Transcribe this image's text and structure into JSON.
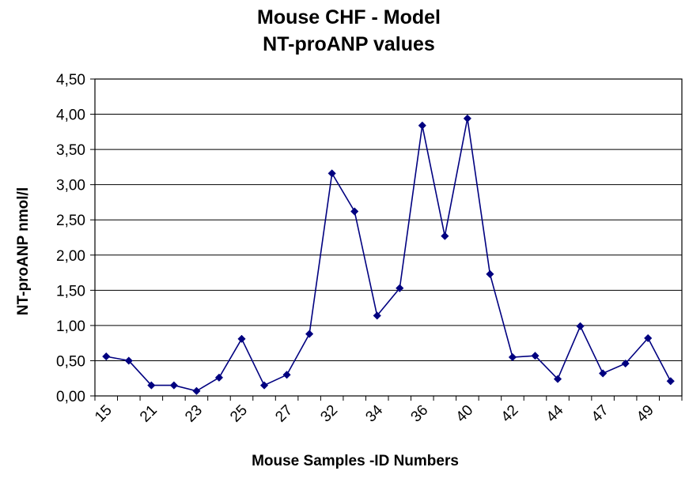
{
  "chart_data": {
    "type": "line",
    "title": "Mouse CHF - Model",
    "subtitle": "NT-proANP values",
    "xlabel": "Mouse  Samples -ID Numbers",
    "ylabel": "NT-proANP  nmol/l",
    "ylim": [
      0,
      4.5
    ],
    "y_ticks": [
      "0,00",
      "0,50",
      "1,00",
      "1,50",
      "2,00",
      "2,50",
      "3,00",
      "3,50",
      "4,00",
      "4,50"
    ],
    "x_tick_labels": [
      "15",
      "21",
      "23",
      "25",
      "27",
      "32",
      "34",
      "36",
      "40",
      "42",
      "44",
      "47",
      "49"
    ],
    "x_tick_positions": [
      0,
      2,
      4,
      6,
      8,
      10,
      12,
      14,
      16,
      18,
      20,
      22,
      24
    ],
    "grid": true,
    "legend": "none",
    "series": [
      {
        "marker": "diamond",
        "values": [
          0.56,
          0.5,
          0.15,
          0.15,
          0.07,
          0.26,
          0.81,
          0.15,
          0.3,
          0.88,
          3.16,
          2.62,
          1.14,
          1.53,
          3.84,
          2.27,
          3.94,
          1.73,
          0.55,
          0.57,
          0.24,
          0.99,
          0.32,
          0.46,
          0.82,
          0.21
        ]
      }
    ],
    "colors": {
      "line": "#000080",
      "gridline": "#000000",
      "background": "#ffffff"
    }
  }
}
